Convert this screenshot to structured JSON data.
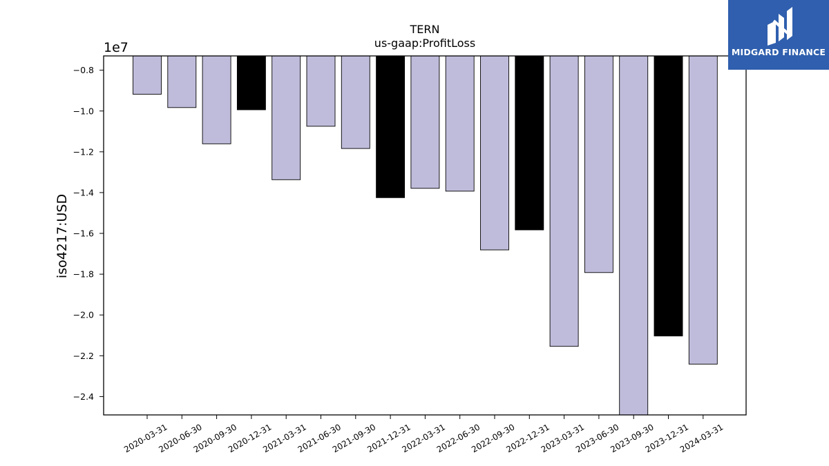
{
  "brand": {
    "name": "MIDGARD FINANCE",
    "color": "#2f5fae"
  },
  "colors": {
    "default_bar": "#bfbcdb",
    "q4_bar": "#000000"
  },
  "chart_data": {
    "type": "bar",
    "title": "TERN",
    "subtitle": "us-gaap:ProfitLoss",
    "ylabel": "iso4217:USD",
    "xlabel": "",
    "offset_label": "1e7",
    "ylim": [
      -2.49,
      -0.73
    ],
    "yticks": [
      -0.8,
      -1.0,
      -1.2,
      -1.4,
      -1.6,
      -1.8,
      -2.0,
      -2.2,
      -2.4
    ],
    "ytick_labels": [
      "−0.8",
      "−1.0",
      "−1.2",
      "−1.4",
      "−1.6",
      "−1.8",
      "−2.0",
      "−2.2",
      "−2.4"
    ],
    "categories": [
      "2020-03-31",
      "2020-06-30",
      "2020-09-30",
      "2020-12-31",
      "2021-03-31",
      "2021-06-30",
      "2021-09-30",
      "2021-12-31",
      "2022-03-31",
      "2022-06-30",
      "2022-09-30",
      "2022-12-31",
      "2023-03-31",
      "2023-06-30",
      "2023-09-30",
      "2023-12-31",
      "2024-03-31"
    ],
    "values": [
      -0.918,
      -0.983,
      -1.161,
      -0.994,
      -1.337,
      -1.075,
      -1.184,
      -1.425,
      -1.379,
      -1.393,
      -1.681,
      -1.583,
      -2.154,
      -1.792,
      -2.49,
      -2.103,
      -2.241
    ],
    "highlight": [
      false,
      false,
      false,
      true,
      false,
      false,
      false,
      true,
      false,
      false,
      false,
      true,
      false,
      false,
      false,
      true,
      false
    ],
    "grid": false,
    "legend": "none"
  }
}
